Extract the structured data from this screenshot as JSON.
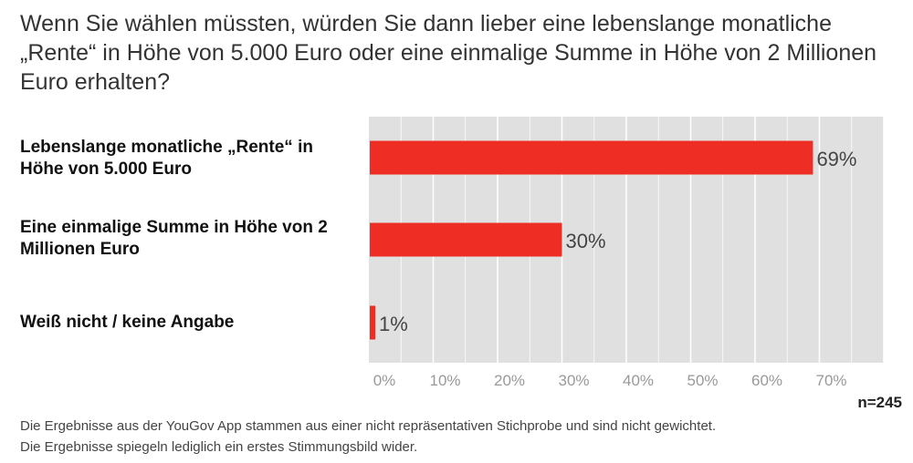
{
  "chart_data": {
    "type": "bar",
    "orientation": "horizontal",
    "title": "Wenn Sie wählen müssten, würden Sie dann lieber eine lebenslange monatliche „Rente“ in Höhe von 5.000 Euro oder eine einmalige Summe in Höhe von 2 Millionen Euro erhalten?",
    "categories": [
      "Lebenslange monatliche „Rente“ in Höhe von 5.000 Euro",
      "Eine einmalige Summe in Höhe von 2 Millionen Euro",
      "Weiß nicht / keine Angabe"
    ],
    "values": [
      69,
      30,
      1
    ],
    "value_labels": [
      "69%",
      "30%",
      "1%"
    ],
    "xlim": [
      0,
      80
    ],
    "xticks": [
      0,
      10,
      20,
      30,
      40,
      50,
      60,
      70
    ],
    "xtick_labels": [
      "0%",
      "10%",
      "20%",
      "30%",
      "40%",
      "50%",
      "60%",
      "70%"
    ],
    "grid": true,
    "bar_color": "#ee2e24",
    "plot_background": "#e0e0e0"
  },
  "sample_size": "n=245",
  "notes": [
    "Die Ergebnisse aus der YouGov App stammen aus einer nicht repräsentativen Stichprobe und sind nicht gewichtet.",
    "Die Ergebnisse spiegeln lediglich ein erstes Stimmungsbild wider."
  ]
}
